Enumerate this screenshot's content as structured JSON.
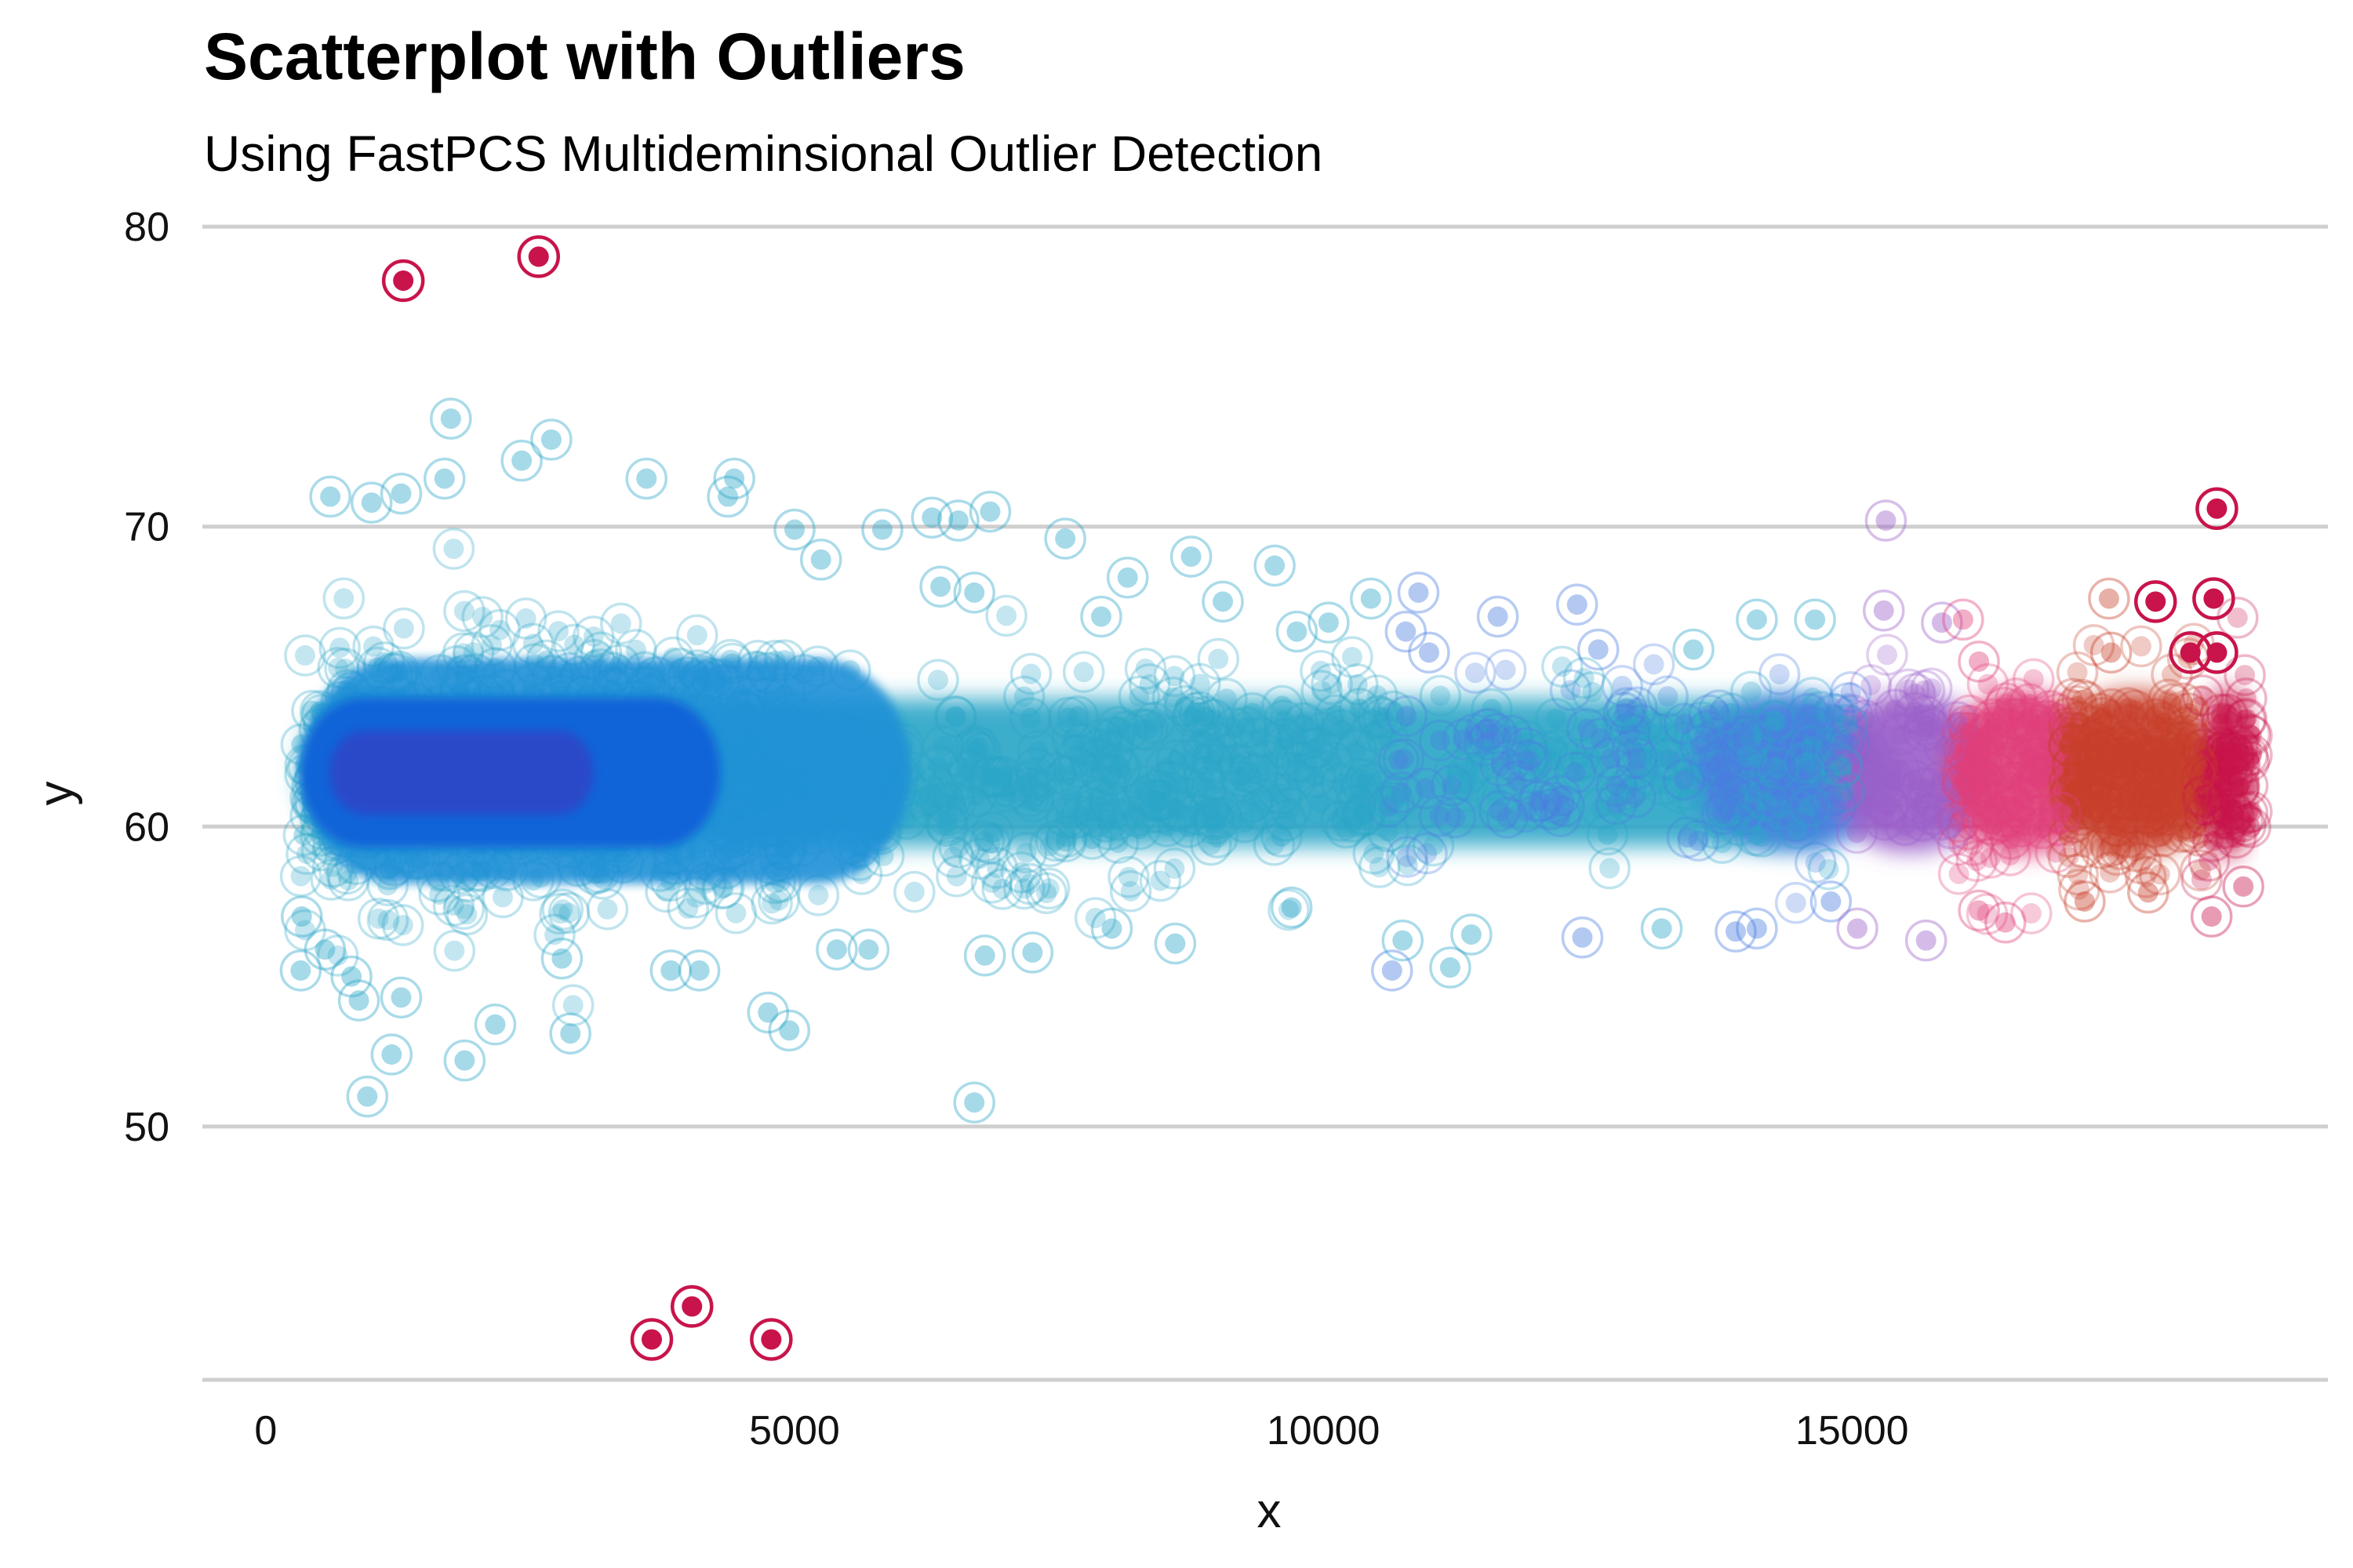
{
  "chart_data": {
    "type": "scatter",
    "title": "Scatterplot with Outliers",
    "subtitle": "Using FastPCS Multideminsional Outlier Detection",
    "xlabel": "x",
    "ylabel": "y",
    "xlim": [
      -600,
      19500
    ],
    "ylim": [
      41.5,
      80.5
    ],
    "x_ticks": [
      0,
      5000,
      10000,
      15000
    ],
    "x_tick_labels": [
      "0",
      "5000",
      "10000",
      "15000"
    ],
    "y_ticks": [
      50,
      60,
      70,
      80
    ],
    "y_tick_labels": [
      "50",
      "60",
      "70",
      "80"
    ],
    "grid": {
      "horizontal": true,
      "vertical": false
    },
    "colors": {
      "gridline": "#cfcfcf",
      "cyan": "#2ba6c8",
      "blue": "#1e90d6",
      "deep_blue": "#0b5ed8",
      "indigo": "#2b45c8",
      "cornflower": "#4a7fe0",
      "violet": "#9b5fc9",
      "pink": "#e0407a",
      "rust": "#c8402a",
      "crimson": "#c8144a"
    },
    "density_bands": [
      {
        "x": [
          330,
          15000
        ],
        "y_sd": 1.45,
        "color": "cyan"
      },
      {
        "x": [
          13500,
          15400
        ],
        "y_sd": 1.5,
        "color": "cornflower"
      },
      {
        "x": [
          14800,
          16300
        ],
        "y_sd": 1.55,
        "color": "violet"
      },
      {
        "x": [
          15900,
          17300
        ],
        "y_sd": 1.6,
        "color": "pink"
      },
      {
        "x": [
          16900,
          18450
        ],
        "y_sd": 1.6,
        "color": "rust"
      },
      {
        "x": [
          18300,
          18800
        ],
        "y_sd": 1.65,
        "color": "crimson"
      }
    ],
    "density_contours": [
      {
        "x": [
          330,
          6100
        ],
        "y": [
          58.1,
          65.6
        ],
        "color": "blue"
      },
      {
        "x": [
          330,
          4300
        ],
        "y": [
          59.3,
          64.3
        ],
        "color": "deep_blue"
      },
      {
        "x": [
          600,
          3100
        ],
        "y": [
          60.4,
          63.2
        ],
        "color": "indigo"
      }
    ],
    "outliers": [
      {
        "x": 1300,
        "y": 78.2
      },
      {
        "x": 2580,
        "y": 79.0
      },
      {
        "x": 3650,
        "y": 42.9
      },
      {
        "x": 4030,
        "y": 44.0
      },
      {
        "x": 4780,
        "y": 42.9
      },
      {
        "x": 18450,
        "y": 70.6
      },
      {
        "x": 18420,
        "y": 67.6
      },
      {
        "x": 17870,
        "y": 67.5
      },
      {
        "x": 18200,
        "y": 65.8
      },
      {
        "x": 18450,
        "y": 65.8
      }
    ],
    "scattered_points": [
      {
        "x": 1750,
        "y": 73.6
      },
      {
        "x": 2700,
        "y": 72.9
      },
      {
        "x": 2420,
        "y": 72.2
      },
      {
        "x": 1690,
        "y": 71.6
      },
      {
        "x": 3600,
        "y": 71.6
      },
      {
        "x": 4430,
        "y": 71.6
      },
      {
        "x": 4370,
        "y": 71.0
      },
      {
        "x": 610,
        "y": 71.0
      },
      {
        "x": 1000,
        "y": 70.8
      },
      {
        "x": 1280,
        "y": 71.1
      },
      {
        "x": 6850,
        "y": 70.5
      },
      {
        "x": 6550,
        "y": 70.2
      },
      {
        "x": 6300,
        "y": 70.3
      },
      {
        "x": 7560,
        "y": 69.6
      },
      {
        "x": 5830,
        "y": 69.9
      },
      {
        "x": 5000,
        "y": 69.9
      },
      {
        "x": 5250,
        "y": 68.9
      },
      {
        "x": 8750,
        "y": 69.0
      },
      {
        "x": 9540,
        "y": 68.7
      },
      {
        "x": 8150,
        "y": 68.3
      },
      {
        "x": 6380,
        "y": 68.0
      },
      {
        "x": 6700,
        "y": 67.8
      },
      {
        "x": 7900,
        "y": 67.0
      },
      {
        "x": 9050,
        "y": 67.5
      },
      {
        "x": 10450,
        "y": 67.6
      },
      {
        "x": 10900,
        "y": 67.8
      },
      {
        "x": 12400,
        "y": 67.4
      },
      {
        "x": 11650,
        "y": 67.0
      },
      {
        "x": 10780,
        "y": 66.5
      },
      {
        "x": 11000,
        "y": 65.8
      },
      {
        "x": 10050,
        "y": 66.8
      },
      {
        "x": 9750,
        "y": 66.5
      },
      {
        "x": 12600,
        "y": 65.9
      },
      {
        "x": 13500,
        "y": 65.9
      },
      {
        "x": 14100,
        "y": 66.9
      },
      {
        "x": 14650,
        "y": 66.9
      },
      {
        "x": 15300,
        "y": 67.2
      },
      {
        "x": 15850,
        "y": 66.8
      },
      {
        "x": 16050,
        "y": 66.9
      },
      {
        "x": 15320,
        "y": 70.2
      },
      {
        "x": 17430,
        "y": 67.6
      },
      {
        "x": 17450,
        "y": 65.8
      },
      {
        "x": 16200,
        "y": 65.5
      },
      {
        "x": 340,
        "y": 57.0
      },
      {
        "x": 330,
        "y": 55.2
      },
      {
        "x": 560,
        "y": 55.9
      },
      {
        "x": 810,
        "y": 55.0
      },
      {
        "x": 880,
        "y": 54.2
      },
      {
        "x": 1280,
        "y": 54.3
      },
      {
        "x": 1190,
        "y": 52.4
      },
      {
        "x": 960,
        "y": 51.0
      },
      {
        "x": 1880,
        "y": 52.2
      },
      {
        "x": 2170,
        "y": 53.4
      },
      {
        "x": 2800,
        "y": 55.6
      },
      {
        "x": 2880,
        "y": 53.1
      },
      {
        "x": 3830,
        "y": 55.2
      },
      {
        "x": 4100,
        "y": 55.2
      },
      {
        "x": 4750,
        "y": 53.8
      },
      {
        "x": 4950,
        "y": 53.2
      },
      {
        "x": 5400,
        "y": 55.9
      },
      {
        "x": 5700,
        "y": 55.9
      },
      {
        "x": 6800,
        "y": 55.7
      },
      {
        "x": 6700,
        "y": 50.8
      },
      {
        "x": 7250,
        "y": 55.8
      },
      {
        "x": 8000,
        "y": 56.6
      },
      {
        "x": 8600,
        "y": 56.1
      },
      {
        "x": 9700,
        "y": 57.3
      },
      {
        "x": 10650,
        "y": 55.2
      },
      {
        "x": 10750,
        "y": 56.2
      },
      {
        "x": 11200,
        "y": 55.3
      },
      {
        "x": 11400,
        "y": 56.4
      },
      {
        "x": 12450,
        "y": 56.3
      },
      {
        "x": 13200,
        "y": 56.6
      },
      {
        "x": 13900,
        "y": 56.5
      },
      {
        "x": 14100,
        "y": 56.6
      },
      {
        "x": 14800,
        "y": 57.5
      },
      {
        "x": 15050,
        "y": 56.6
      },
      {
        "x": 15700,
        "y": 56.2
      },
      {
        "x": 16450,
        "y": 56.8
      },
      {
        "x": 16200,
        "y": 57.2
      },
      {
        "x": 17200,
        "y": 57.5
      },
      {
        "x": 17800,
        "y": 57.8
      },
      {
        "x": 18400,
        "y": 57.0
      },
      {
        "x": 18700,
        "y": 58.0
      }
    ]
  }
}
